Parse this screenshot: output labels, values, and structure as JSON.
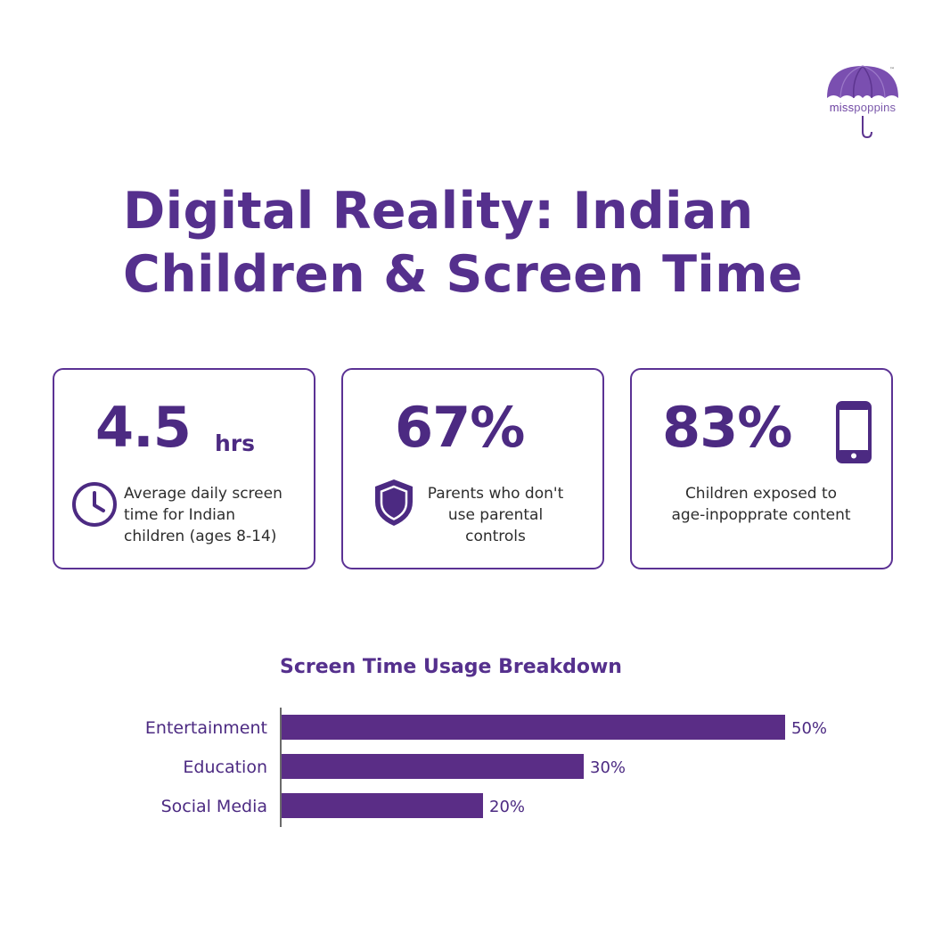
{
  "logo": {
    "text_part1": "miss",
    "text_part2": "poppins",
    "trademark": "™"
  },
  "title": {
    "line1": "Digital Reality: Indian",
    "line2": "Children & Screen Time"
  },
  "cards": [
    {
      "value": "4.5",
      "unit": "hrs",
      "description_lines": [
        "Average daily screen",
        "time for Indian",
        "children (ages 8-14)"
      ],
      "icon": "clock-icon"
    },
    {
      "value": "67%",
      "description_lines": [
        "Parents who don't",
        "use parental",
        "controls"
      ],
      "icon": "shield-icon"
    },
    {
      "value": "83%",
      "description_lines": [
        "Children exposed to",
        "age-inpopprate content"
      ],
      "icon": "smartphone-icon"
    }
  ],
  "colors": {
    "primary": "#55308d",
    "bar": "#5a2d86",
    "text": "#2d2d2d"
  },
  "chart_data": {
    "type": "bar",
    "orientation": "horizontal",
    "title": "Screen Time Usage Breakdown",
    "categories": [
      "Entertainment",
      "Education",
      "Social Media"
    ],
    "values": [
      50,
      30,
      20
    ],
    "value_labels": [
      "50%",
      "30%",
      "20%"
    ],
    "xlim": [
      0,
      50
    ],
    "grid": false,
    "legend": "none"
  }
}
